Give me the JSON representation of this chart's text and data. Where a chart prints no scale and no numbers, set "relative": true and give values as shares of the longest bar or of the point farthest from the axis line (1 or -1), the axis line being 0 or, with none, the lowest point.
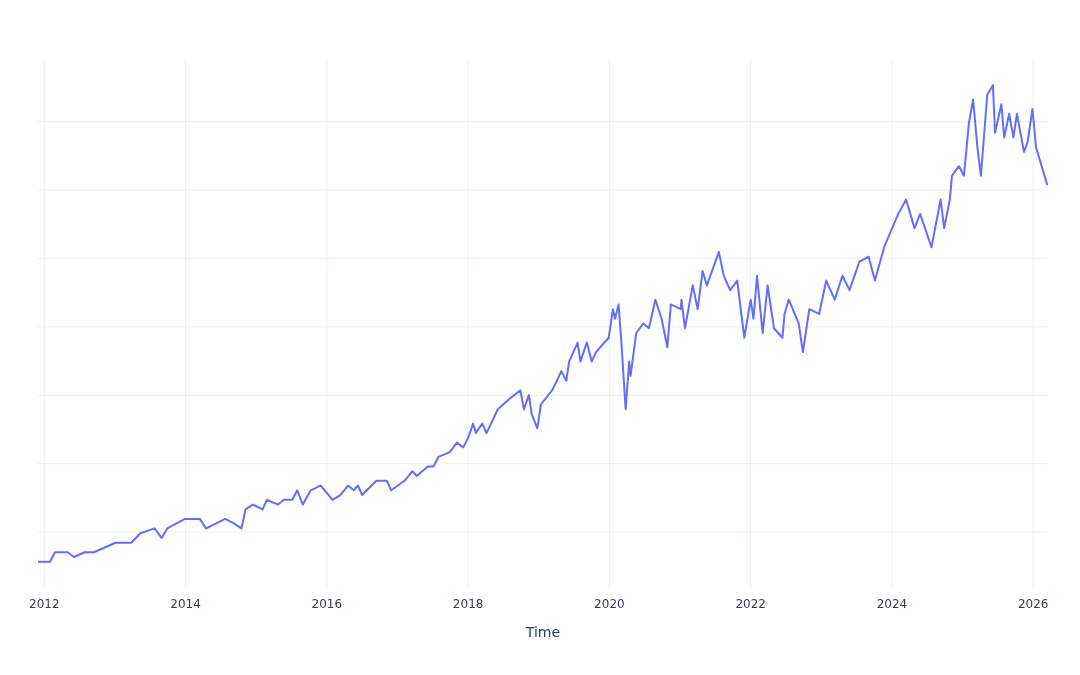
{
  "chart_data": {
    "type": "line",
    "xlabel": "Time",
    "relative": true,
    "grid": true,
    "xlim": [
      2011.91,
      2026.21
    ],
    "xticks": [
      2012,
      2014,
      2016,
      2018,
      2020,
      2022,
      2024,
      2026
    ],
    "series": [
      {
        "color": "#636efa",
        "x": [
          2011.91,
          2012.08,
          2012.15,
          2012.33,
          2012.42,
          2012.57,
          2012.7,
          2013.01,
          2013.23,
          2013.36,
          2013.56,
          2013.66,
          2013.74,
          2013.99,
          2014.05,
          2014.2,
          2014.29,
          2014.56,
          2014.69,
          2014.79,
          2014.85,
          2014.95,
          2015.09,
          2015.15,
          2015.31,
          2015.39,
          2015.51,
          2015.58,
          2015.66,
          2015.77,
          2015.91,
          2015.97,
          2016.08,
          2016.19,
          2016.3,
          2016.38,
          2016.44,
          2016.5,
          2016.7,
          2016.85,
          2016.91,
          2017.1,
          2017.21,
          2017.27,
          2017.43,
          2017.51,
          2017.58,
          2017.74,
          2017.84,
          2017.93,
          2018.0,
          2018.07,
          2018.11,
          2018.2,
          2018.26,
          2018.42,
          2018.57,
          2018.74,
          2018.79,
          2018.86,
          2018.9,
          2018.98,
          2019.03,
          2019.19,
          2019.32,
          2019.39,
          2019.43,
          2019.55,
          2019.59,
          2019.68,
          2019.75,
          2019.81,
          2019.99,
          2020.05,
          2020.08,
          2020.13,
          2020.17,
          2020.23,
          2020.28,
          2020.3,
          2020.38,
          2020.48,
          2020.56,
          2020.65,
          2020.74,
          2020.82,
          2020.87,
          2021.01,
          2021.02,
          2021.07,
          2021.18,
          2021.25,
          2021.32,
          2021.38,
          2021.55,
          2021.62,
          2021.71,
          2021.81,
          2021.91,
          2022.0,
          2022.04,
          2022.09,
          2022.17,
          2022.24,
          2022.33,
          2022.45,
          2022.48,
          2022.54,
          2022.68,
          2022.74,
          2022.83,
          2022.97,
          2023.07,
          2023.19,
          2023.3,
          2023.4,
          2023.54,
          2023.67,
          2023.76,
          2023.89,
          2024.09,
          2024.2,
          2024.32,
          2024.4,
          2024.56,
          2024.69,
          2024.74,
          2024.82,
          2024.85,
          2024.95,
          2025.02,
          2025.09,
          2025.15,
          2025.21,
          2025.26,
          2025.35,
          2025.43,
          2025.46,
          2025.55,
          2025.59,
          2025.66,
          2025.72,
          2025.77,
          2025.87,
          2025.92,
          2025.99,
          2026.04,
          2026.12,
          2026.2
        ],
        "values": [
          0.0,
          0.0,
          0.02,
          0.02,
          0.01,
          0.02,
          0.02,
          0.04,
          0.04,
          0.06,
          0.07,
          0.05,
          0.07,
          0.09,
          0.09,
          0.09,
          0.07,
          0.09,
          0.08,
          0.07,
          0.11,
          0.12,
          0.11,
          0.13,
          0.12,
          0.13,
          0.13,
          0.15,
          0.12,
          0.15,
          0.16,
          0.15,
          0.13,
          0.14,
          0.16,
          0.15,
          0.16,
          0.14,
          0.17,
          0.17,
          0.15,
          0.17,
          0.19,
          0.18,
          0.2,
          0.2,
          0.22,
          0.23,
          0.25,
          0.24,
          0.26,
          0.29,
          0.27,
          0.29,
          0.27,
          0.32,
          0.34,
          0.36,
          0.32,
          0.35,
          0.31,
          0.28,
          0.33,
          0.36,
          0.4,
          0.38,
          0.42,
          0.46,
          0.42,
          0.46,
          0.42,
          0.44,
          0.47,
          0.53,
          0.51,
          0.54,
          0.46,
          0.32,
          0.42,
          0.39,
          0.48,
          0.5,
          0.49,
          0.55,
          0.51,
          0.45,
          0.54,
          0.53,
          0.55,
          0.49,
          0.58,
          0.53,
          0.61,
          0.58,
          0.65,
          0.6,
          0.57,
          0.59,
          0.47,
          0.55,
          0.51,
          0.6,
          0.48,
          0.58,
          0.49,
          0.47,
          0.52,
          0.55,
          0.5,
          0.44,
          0.53,
          0.52,
          0.59,
          0.55,
          0.6,
          0.57,
          0.63,
          0.64,
          0.59,
          0.66,
          0.73,
          0.76,
          0.7,
          0.73,
          0.66,
          0.76,
          0.7,
          0.76,
          0.81,
          0.83,
          0.81,
          0.92,
          0.97,
          0.87,
          0.81,
          0.98,
          1.0,
          0.9,
          0.96,
          0.89,
          0.94,
          0.89,
          0.94,
          0.86,
          0.88,
          0.95,
          0.87,
          0.83,
          0.79
        ]
      }
    ]
  }
}
